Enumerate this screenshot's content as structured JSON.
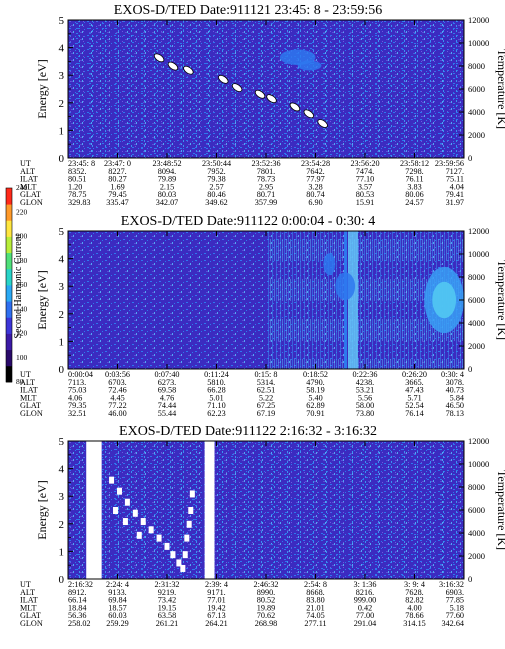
{
  "colorbar": {
    "label": "Second Harmonic Current",
    "ticks": [
      "80",
      "100",
      "120",
      "140",
      "160",
      "180",
      "200",
      "220",
      "240"
    ],
    "colors": [
      "#000000",
      "#2a0a6a",
      "#3b1aa6",
      "#3d35d8",
      "#2f6ff0",
      "#2aa9f4",
      "#28d4c8",
      "#4fe07a",
      "#b8ee3a",
      "#ffe640",
      "#ff9a2a",
      "#ff2a1a"
    ]
  },
  "colors": {
    "background": "#3b2bc0",
    "speckle": "#2e78ee",
    "saturated": "#ffffff"
  },
  "chart_data": [
    {
      "type": "heatmap",
      "title": "EXOS-D/TED  Date:911121  23:45: 8 - 23:59:56",
      "ylabel": "Energy [eV]",
      "y2label": "Temperature [K]",
      "ylim": [
        0,
        5
      ],
      "y2lim": [
        0,
        12000
      ],
      "yticks": [
        "0",
        "1",
        "2",
        "3",
        "4",
        "5"
      ],
      "y2ticks": [
        "0",
        "2000",
        "4000",
        "6000",
        "8000",
        "10000",
        "12000"
      ],
      "row_labels": [
        "UT",
        "ALT",
        "ILAT",
        "MLT",
        "GLAT",
        "GLON"
      ],
      "columns": [
        [
          "23:45: 8",
          "8352.",
          "80.51",
          "1.20",
          "78.75",
          "329.83"
        ],
        [
          "23:47: 0",
          "8227.",
          "80.27",
          "1.69",
          "79.45",
          "335.47"
        ],
        [
          "23:48:52",
          "8094.",
          "79.89",
          "2.15",
          "80.03",
          "342.07"
        ],
        [
          "23:50:44",
          "7952.",
          "79.38",
          "2.57",
          "80.46",
          "349.62"
        ],
        [
          "23:52:36",
          "7801.",
          "78.73",
          "2.95",
          "80.71",
          "357.99"
        ],
        [
          "23:54:28",
          "7642.",
          "77.97",
          "3.28",
          "80.74",
          "6.90"
        ],
        [
          "23:56:20",
          "7474.",
          "77.10",
          "3.57",
          "80.53",
          "15.91"
        ],
        [
          "23:58:12",
          "7298.",
          "76.11",
          "3.83",
          "80.06",
          "24.57"
        ],
        [
          "23:59:56",
          "7127.",
          "75.11",
          "4.04",
          "79.41",
          "31.97"
        ]
      ],
      "trace": [
        [
          23.0,
          3.63
        ],
        [
          26.5,
          3.33
        ],
        [
          30.4,
          3.18
        ],
        [
          39.2,
          2.85
        ],
        [
          42.7,
          2.55
        ],
        [
          48.5,
          2.31
        ],
        [
          51.4,
          2.15
        ],
        [
          57.3,
          1.85
        ],
        [
          60.8,
          1.6
        ],
        [
          64.3,
          1.25
        ]
      ],
      "warm_patches": [
        [
          58.0,
          3.65,
          4.5,
          0.28
        ],
        [
          61.0,
          3.35,
          3.0,
          0.18
        ]
      ],
      "white_bars": [],
      "white_blobs": []
    },
    {
      "type": "heatmap",
      "title": "EXOS-D/TED   Date:911122  0:00:04 - 0:30: 4",
      "ylabel": "Energy [eV]",
      "y2label": "Temperature [K]",
      "ylim": [
        0,
        5
      ],
      "y2lim": [
        0,
        12000
      ],
      "yticks": [
        "0",
        "1",
        "2",
        "3",
        "4",
        "5"
      ],
      "y2ticks": [
        "0",
        "2000",
        "4000",
        "6000",
        "8000",
        "10000",
        "12000"
      ],
      "row_labels": [
        "UT",
        "ALT",
        "ILAT",
        "MLT",
        "GLAT",
        "GLON"
      ],
      "columns": [
        [
          "0:00:04",
          "7113.",
          "75.03",
          "4.06",
          "79.35",
          "32.51"
        ],
        [
          "0:03:56",
          "6703.",
          "72.46",
          "4.45",
          "77.22",
          "46.00"
        ],
        [
          "0:07:40",
          "6273.",
          "69.58",
          "4.76",
          "74.44",
          "55.44"
        ],
        [
          "0:11:24",
          "5810.",
          "66.28",
          "5.01",
          "71.10",
          "62.23"
        ],
        [
          "0:15: 8",
          "5314.",
          "62.51",
          "5.22",
          "67.25",
          "67.19"
        ],
        [
          "0:18:52",
          "4790.",
          "58.19",
          "5.40",
          "62.89",
          "70.91"
        ],
        [
          "0:22:36",
          "4238.",
          "53.21",
          "5.56",
          "58.00",
          "73.80"
        ],
        [
          "0:26:20",
          "3665.",
          "47.43",
          "5.71",
          "52.54",
          "76.14"
        ],
        [
          "0:30: 4",
          "3078.",
          "40.73",
          "5.84",
          "46.50",
          "78.13"
        ]
      ],
      "trace": [],
      "warm_patches": [
        [
          95.0,
          2.5,
          5.0,
          1.2
        ],
        [
          70.0,
          3.0,
          2.5,
          0.5
        ],
        [
          66.0,
          3.8,
          1.5,
          0.4
        ]
      ],
      "white_bars": [],
      "white_blobs": []
    },
    {
      "type": "heatmap",
      "title": "EXOS-D/TED   Date:911122  2:16:32 - 3:16:32",
      "ylabel": "Energy [eV]",
      "y2label": "Temperature [K]",
      "ylim": [
        0,
        5
      ],
      "y2lim": [
        0,
        12000
      ],
      "yticks": [
        "0",
        "1",
        "2",
        "3",
        "4",
        "5"
      ],
      "y2ticks": [
        "0",
        "2000",
        "4000",
        "6000",
        "8000",
        "10000",
        "12000"
      ],
      "row_labels": [
        "UT",
        "ALT",
        "ILAT",
        "MLT",
        "GLAT",
        "GLON"
      ],
      "columns": [
        [
          "2:16:32",
          "8912.",
          "66.14",
          "18.84",
          "56.36",
          "258.02"
        ],
        [
          "2:24: 4",
          "9133.",
          "69.84",
          "18.57",
          "60.03",
          "259.29"
        ],
        [
          "2:31:32",
          "9219.",
          "73.42",
          "19.15",
          "63.58",
          "261.21"
        ],
        [
          "2:39: 4",
          "9171.",
          "77.01",
          "19.42",
          "67.13",
          "264.21"
        ],
        [
          "2:46:32",
          "8990.",
          "80.52",
          "19.89",
          "70.62",
          "268.98"
        ],
        [
          "2:54: 8",
          "8668.",
          "83.80",
          "21.01",
          "74.05",
          "277.11"
        ],
        [
          "3: 1:36",
          "8216.",
          "999.00",
          "0.42",
          "77.00",
          "291.04"
        ],
        [
          "3: 9: 4",
          "7628.",
          "82.82",
          "4.00",
          "78.66",
          "314.15"
        ],
        [
          "3:16:32",
          "6903.",
          "77.85",
          "5.18",
          "77.60",
          "342.64"
        ]
      ],
      "trace": [],
      "warm_patches": [],
      "white_bars": [
        [
          4.6,
          7.0
        ],
        [
          6.4,
          8.5
        ],
        [
          34.5,
          37.0
        ]
      ],
      "white_blobs": [
        [
          11.0,
          3.6
        ],
        [
          13.0,
          3.2
        ],
        [
          15.0,
          2.8
        ],
        [
          17.0,
          2.4
        ],
        [
          19.0,
          2.1
        ],
        [
          21.0,
          1.8
        ],
        [
          23.0,
          1.5
        ],
        [
          25.0,
          1.2
        ],
        [
          26.5,
          0.9
        ],
        [
          28.0,
          0.6
        ],
        [
          29.0,
          0.4
        ],
        [
          29.6,
          0.9
        ],
        [
          30.0,
          1.5
        ],
        [
          30.6,
          2.0
        ],
        [
          31.0,
          2.5
        ],
        [
          31.4,
          3.1
        ],
        [
          12.0,
          2.5
        ],
        [
          14.5,
          2.1
        ],
        [
          18.0,
          1.6
        ]
      ]
    }
  ]
}
